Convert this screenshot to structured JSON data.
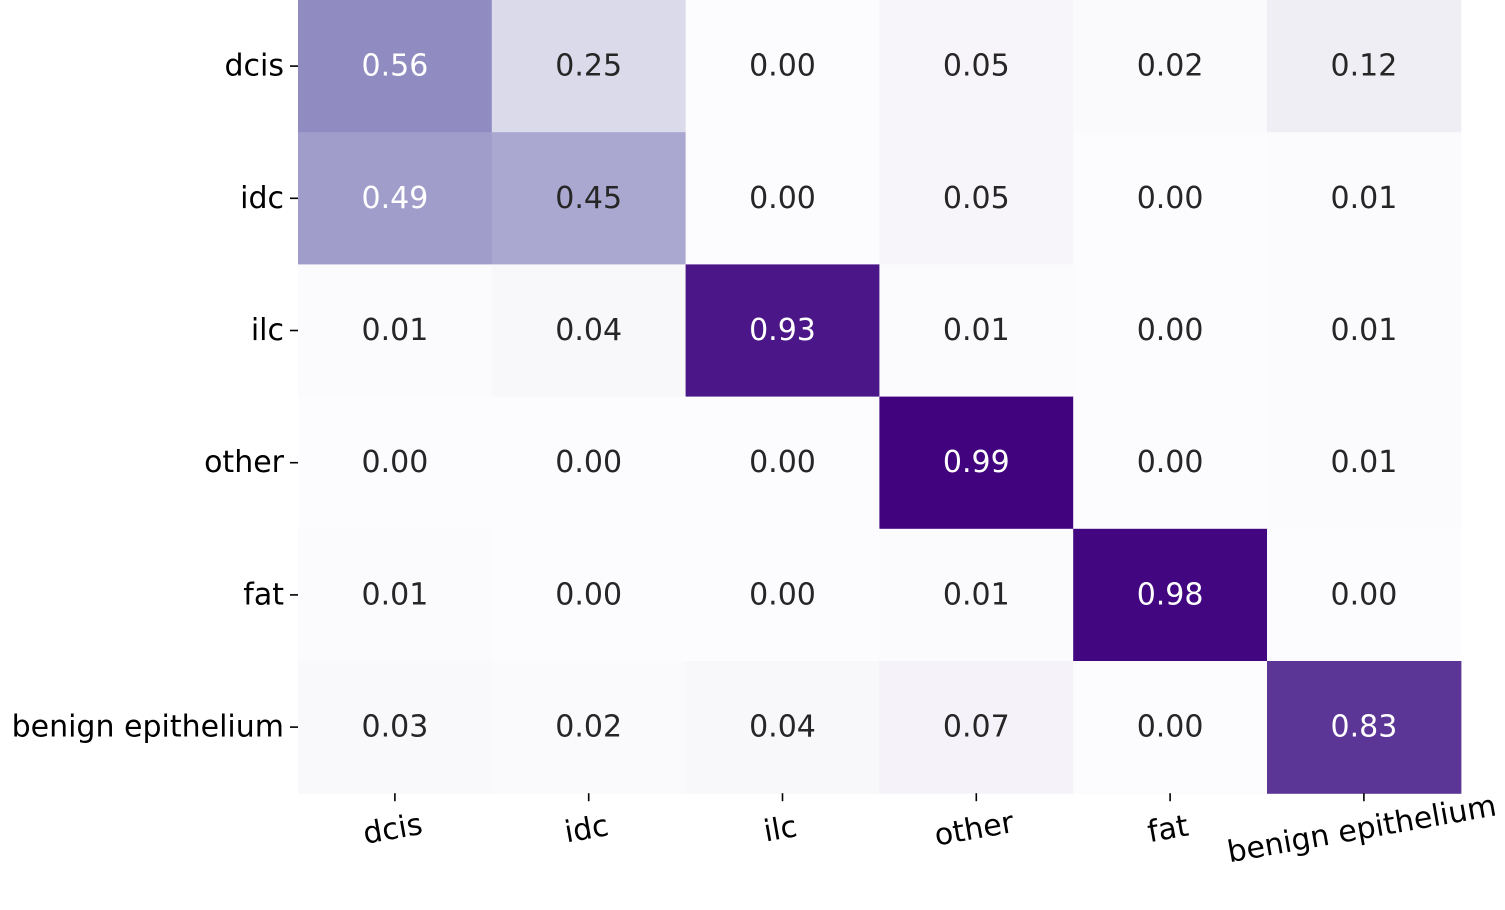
{
  "chart_data": {
    "type": "heatmap",
    "title": "",
    "xlabel": "",
    "ylabel": "",
    "rows": [
      "dcis",
      "idc",
      "ilc",
      "other",
      "fat",
      "benign epithelium"
    ],
    "columns": [
      "dcis",
      "idc",
      "ilc",
      "other",
      "fat",
      "benign epithelium"
    ],
    "values": [
      [
        0.56,
        0.25,
        0.0,
        0.05,
        0.02,
        0.12
      ],
      [
        0.49,
        0.45,
        0.0,
        0.05,
        0.0,
        0.01
      ],
      [
        0.01,
        0.04,
        0.93,
        0.01,
        0.0,
        0.01
      ],
      [
        0.0,
        0.0,
        0.0,
        0.99,
        0.0,
        0.01
      ],
      [
        0.01,
        0.0,
        0.0,
        0.01,
        0.98,
        0.0
      ],
      [
        0.03,
        0.02,
        0.04,
        0.07,
        0.0,
        0.83
      ]
    ],
    "value_format": "2 decimals",
    "colormap": "Purples",
    "vmin": 0,
    "vmax": 1,
    "x_tick_rotation": "slanted",
    "colorbar": false,
    "colors": {
      "text_dark": "#262626",
      "text_light": "#ffffff",
      "tick": "#000000"
    }
  }
}
